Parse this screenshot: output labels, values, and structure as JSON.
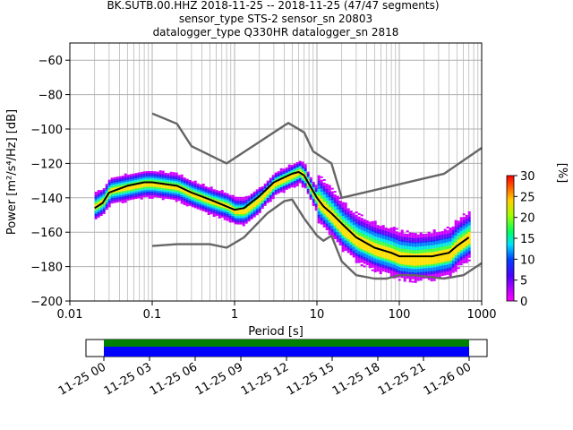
{
  "title_lines": [
    "BK.SUTB.00.HHZ   2018-11-25 -- 2018-11-25  (47/47 segments)",
    "sensor_type STS-2 sensor_sn 20803",
    "datalogger_type Q330HR datalogger_sn 2818"
  ],
  "chart_data": {
    "type": "heatmap",
    "xlabel": "Period [s]",
    "ylabel": "Power [m²/s⁴/Hz] [dB]",
    "x_scale": "log",
    "xlim": [
      0.01,
      1000
    ],
    "ylim": [
      -200,
      -50
    ],
    "x_ticks": [
      0.01,
      0.1,
      1,
      10,
      100,
      1000
    ],
    "x_tick_labels": [
      "0.01",
      "0.1",
      "1",
      "10",
      "100",
      "1000"
    ],
    "y_ticks": [
      -200,
      -180,
      -160,
      -140,
      -120,
      -100,
      -80,
      -60
    ],
    "y_tick_labels": [
      "−200",
      "−180",
      "−160",
      "−140",
      "−120",
      "−100",
      "−80",
      "−60"
    ],
    "grid": true,
    "colorbar": {
      "label": "[%]",
      "range": [
        0,
        30
      ],
      "ticks": [
        0,
        5,
        10,
        15,
        20,
        25,
        30
      ],
      "tick_labels": [
        "0",
        "5",
        "10",
        "15",
        "20",
        "25",
        "30"
      ]
    },
    "series": [
      {
        "color": "#666666",
        "x": [
          0.1,
          0.2,
          0.3,
          0.8,
          4,
          4.5,
          7,
          9,
          15,
          20,
          350,
          1000
        ],
        "y": [
          -91,
          -97,
          -110,
          -120,
          -98,
          -96.5,
          -102,
          -113,
          -120,
          -140,
          -126,
          -111
        ]
      },
      {
        "color": "#666666",
        "x": [
          0.1,
          0.2,
          0.5,
          0.8,
          1.3,
          2.5,
          4,
          5,
          7,
          10,
          12,
          15,
          20,
          30,
          50,
          70,
          100,
          150,
          350,
          600,
          1000
        ],
        "y": [
          -168,
          -167,
          -167,
          -169,
          -163,
          -149,
          -142,
          -141,
          -152,
          -162,
          -165,
          -162,
          -177,
          -185,
          -187,
          -187,
          -185,
          -185,
          -187,
          -185,
          -178
        ]
      },
      {
        "color": "#000000",
        "x": [
          0.02,
          0.025,
          0.03,
          0.05,
          0.08,
          0.1,
          0.2,
          0.3,
          0.5,
          0.8,
          1,
          1.3,
          2,
          3,
          5,
          6,
          7,
          8,
          10,
          12,
          15,
          20,
          30,
          50,
          80,
          100,
          150,
          250,
          400,
          500,
          700
        ],
        "y": [
          -146,
          -143,
          -137,
          -133,
          -131,
          -131,
          -133,
          -137,
          -141,
          -145,
          -147,
          -146,
          -139,
          -131,
          -126,
          -125,
          -127,
          -132,
          -140,
          -145,
          -149,
          -155,
          -163,
          -169,
          -172,
          -174,
          -174,
          -174,
          -172,
          -168,
          -163
        ]
      }
    ],
    "density_ridge": {
      "x": [
        0.02,
        0.025,
        0.03,
        0.05,
        0.08,
        0.1,
        0.2,
        0.3,
        0.5,
        0.8,
        1,
        1.3,
        2,
        3,
        5,
        6,
        7,
        8,
        10,
        12,
        15,
        20,
        30,
        50,
        80,
        100,
        150,
        250,
        400,
        500,
        700
      ],
      "y": [
        -145,
        -142,
        -136,
        -134,
        -132,
        -132,
        -134,
        -138,
        -142,
        -145,
        -148,
        -148,
        -141,
        -132,
        -127,
        -125,
        -128,
        -134,
        -142,
        -146,
        -151,
        -158,
        -165,
        -170,
        -173,
        -175,
        -176,
        -175,
        -173,
        -168,
        -163
      ]
    },
    "time_bar": {
      "tick_labels": [
        "11-25 00",
        "11-25 03",
        "11-25 06",
        "11-25 09",
        "11-25 12",
        "11-25 15",
        "11-25 18",
        "11-25 21",
        "11-26 00"
      ]
    }
  }
}
